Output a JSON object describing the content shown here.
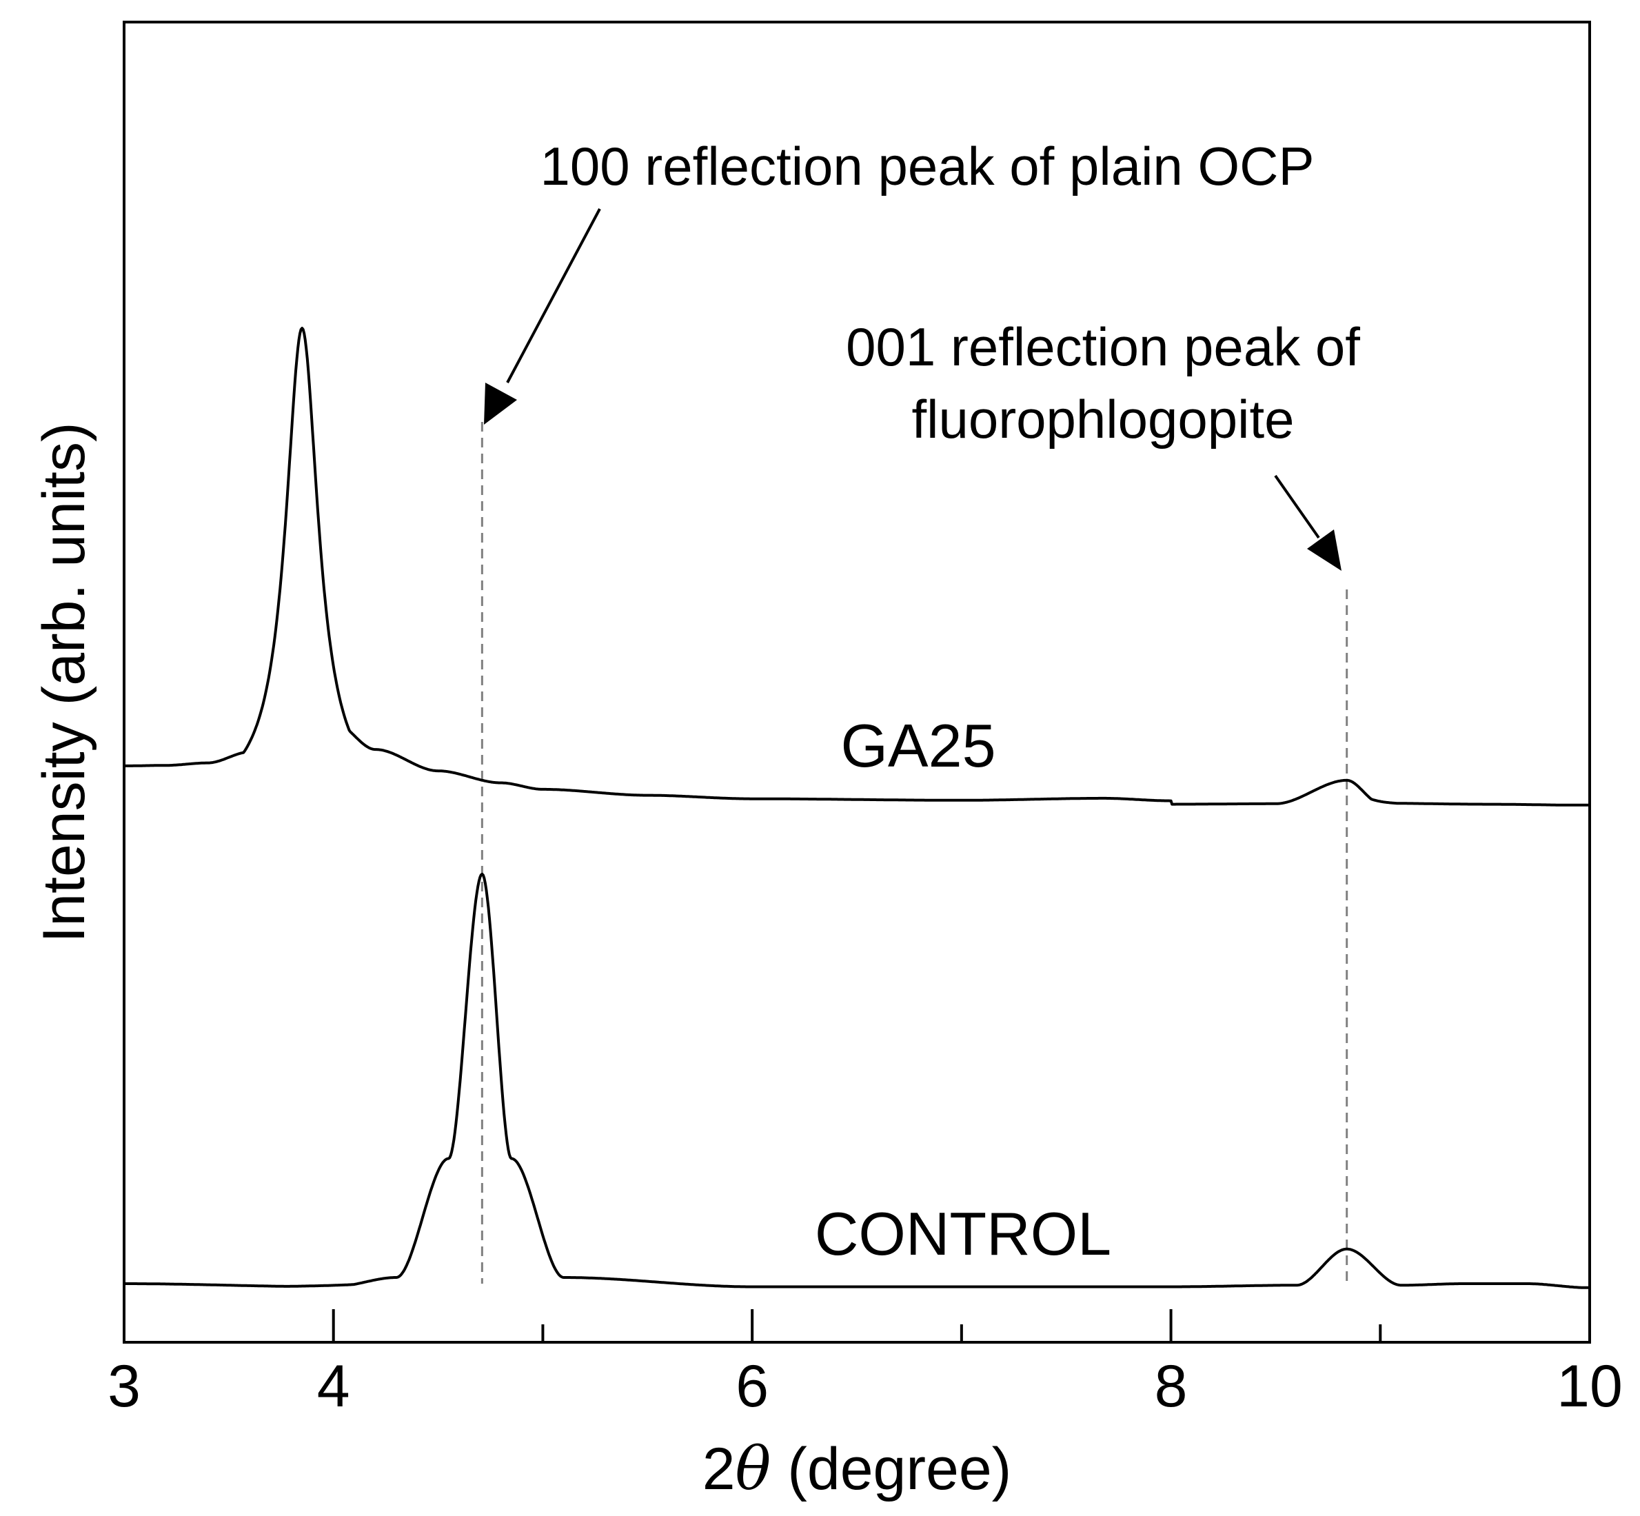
{
  "chart_data": {
    "type": "line",
    "title": "",
    "xlabel_parts": [
      "2",
      "θ",
      " (degree)"
    ],
    "ylabel": "Intensity (arb. units)",
    "xlim": [
      3,
      10
    ],
    "major_ticks": [
      3,
      4,
      6,
      8,
      10
    ],
    "minor_ticks": [
      5,
      7,
      9
    ],
    "tick_labels": [
      "3",
      "4",
      "6",
      "8",
      "10"
    ],
    "y_ticks": "none",
    "grid": false,
    "legend": "none (series labelled inline)",
    "series": [
      {
        "name": "GA25",
        "label": "GA25",
        "baseline_x": [
          3.0,
          3.2,
          3.4,
          3.6,
          4.0,
          4.2,
          4.5,
          4.8,
          5.0,
          5.5,
          6.0,
          7.0,
          7.68,
          8.0,
          8.5,
          8.84,
          9.0,
          9.5,
          10.0
        ],
        "baseline_y": [
          0.72,
          0.73,
          0.78,
          1.0,
          1.6,
          1.05,
          0.62,
          0.38,
          0.25,
          0.13,
          0.06,
          0.03,
          0.07,
          0.02,
          0.03,
          0.5,
          0.04,
          0.02,
          0.0
        ],
        "peaks": [
          {
            "x": 3.85,
            "height": 9.5,
            "width": 0.095,
            "label": "main peak"
          },
          {
            "x": 8.84,
            "height": 0.45,
            "width": 0.07,
            "label": "001 fluorophlogopite"
          },
          {
            "x": 7.68,
            "height": 0.05,
            "width": 0.1,
            "label": "minor"
          }
        ],
        "y_max_relative": 10.3
      },
      {
        "name": "CONTROL",
        "label": "CONTROL",
        "baseline_x": [
          3.0,
          4.0,
          4.3,
          4.55,
          4.71,
          4.85,
          5.1,
          6.0,
          8.0,
          8.6,
          8.84,
          9.1,
          9.4,
          9.7,
          10.0
        ],
        "baseline_y": [
          0.08,
          0.02,
          0.2,
          2.5,
          8.0,
          2.5,
          0.2,
          0.02,
          0.02,
          0.05,
          0.75,
          0.05,
          0.08,
          0.08,
          0.0
        ],
        "peaks": [
          {
            "x": 4.71,
            "height": 8.0,
            "width": 0.055,
            "label": "100 plain OCP"
          },
          {
            "x": 8.84,
            "height": 0.7,
            "width": 0.055,
            "label": "001 fluorophlogopite"
          }
        ],
        "y_max_relative": 8.1
      }
    ],
    "reference_lines": [
      {
        "x": 4.71,
        "style": "dashed",
        "color": "#808080"
      },
      {
        "x": 8.84,
        "style": "dashed",
        "color": "#808080"
      }
    ],
    "annotations": [
      {
        "id": "ocp",
        "lines": [
          "100 reflection peak of plain OCP"
        ],
        "points_to_x": 4.71
      },
      {
        "id": "fluoro",
        "lines": [
          "001 reflection peak of",
          "fluorophlogopite"
        ],
        "points_to_x": 8.84
      }
    ],
    "colors": {
      "line": "#000000",
      "reference": "#808080",
      "background": "#ffffff"
    }
  }
}
